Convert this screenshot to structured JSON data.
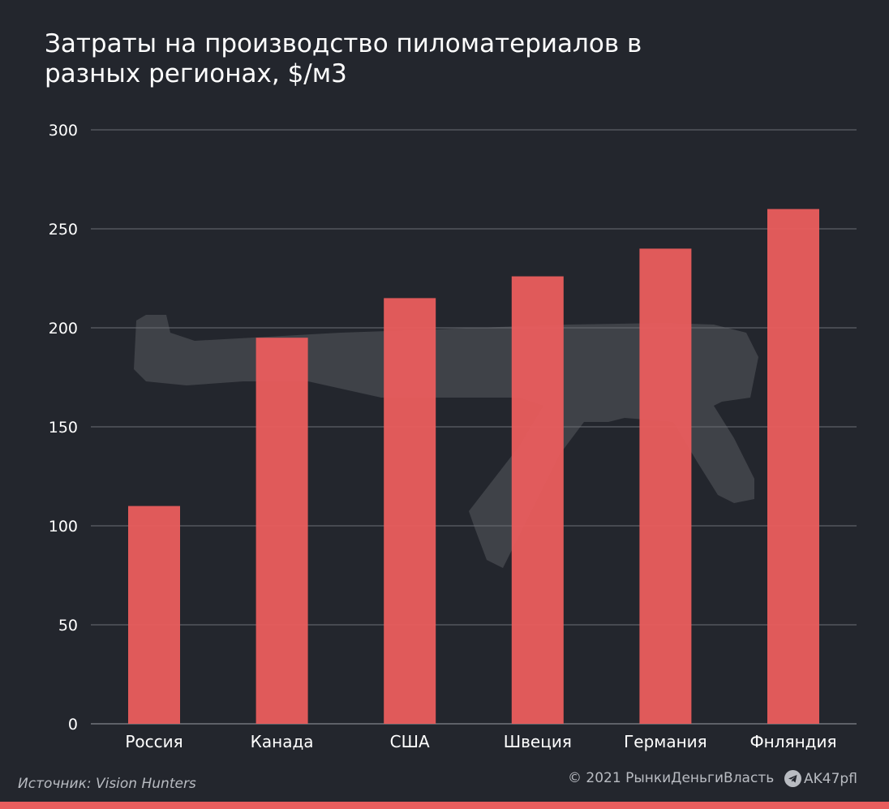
{
  "title_lines": [
    "Затраты на производство пиломатериалов в",
    "разных регионах, $/м3"
  ],
  "footer": {
    "source": "Источник: Vision Hunters",
    "copyright": "© 2021  РынкиДеньгиВласть",
    "telegram": "AK47pfl"
  },
  "colors": {
    "background": "#23262d",
    "bar": "#e85d5d",
    "grid": "#6b6e75",
    "text": "#ffffff",
    "footer_text": "#b9bcc2"
  },
  "chart_data": {
    "type": "bar",
    "title": "Затраты на производство пиломатериалов в разных регионах, $/м3",
    "categories": [
      "Россия",
      "Канада",
      "США",
      "Швеция",
      "Германия",
      "Фнляндия"
    ],
    "values": [
      110,
      195,
      215,
      226,
      240,
      260
    ],
    "ylim": [
      0,
      300
    ],
    "yticks": [
      0,
      50,
      100,
      150,
      200,
      250,
      300
    ],
    "xlabel": "",
    "ylabel": "",
    "grid": true,
    "legend": "none"
  }
}
